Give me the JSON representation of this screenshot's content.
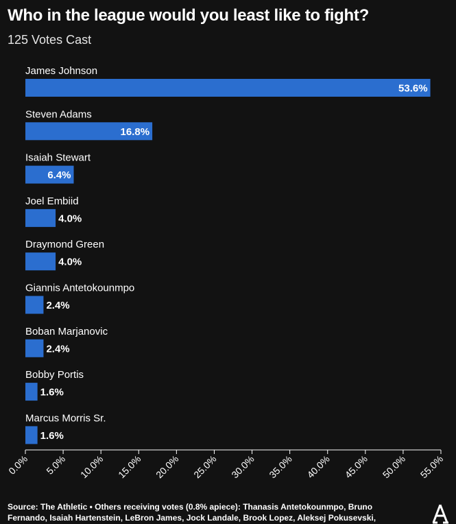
{
  "header": {
    "title": "Who in the league would you least like to fight?",
    "subtitle": "125 Votes Cast"
  },
  "footer": {
    "source": "Source: The Athletic • Others receiving votes (0.8% apiece): Thanasis Antetokounmpo, Bruno Fernando, Isaiah Hartenstein, LeBron James, Jock Landale, Brook Lopez, Aleksej Pokusevski,"
  },
  "logo": {
    "icon": "the-athletic-logo-icon"
  },
  "colors": {
    "bar": "#2b6ecf",
    "background": "#121212",
    "text": "#ffffff"
  },
  "chart_data": {
    "type": "bar",
    "orientation": "horizontal",
    "categories": [
      "James Johnson",
      "Steven Adams",
      "Isaiah Stewart",
      "Joel Embiid",
      "Draymond Green",
      "Giannis Antetokounmpo",
      "Boban Marjanovic",
      "Bobby Portis",
      "Marcus Morris Sr."
    ],
    "values": [
      53.6,
      16.8,
      6.4,
      4.0,
      4.0,
      2.4,
      2.4,
      1.6,
      1.6
    ],
    "value_labels": [
      "53.6%",
      "16.8%",
      "6.4%",
      "4.0%",
      "4.0%",
      "2.4%",
      "2.4%",
      "1.6%",
      "1.6%"
    ],
    "xlim": [
      0,
      55
    ],
    "xticks": [
      0,
      5,
      10,
      15,
      20,
      25,
      30,
      35,
      40,
      45,
      50,
      55
    ],
    "xtick_labels": [
      "0.0%",
      "5.0%",
      "10.0%",
      "15.0%",
      "20.0%",
      "25.0%",
      "30.0%",
      "35.0%",
      "40.0%",
      "45.0%",
      "50.0%",
      "55.0%"
    ],
    "grid": false,
    "legend": "none"
  }
}
